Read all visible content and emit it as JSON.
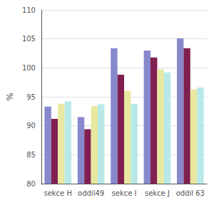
{
  "chart_data": {
    "type": "bar",
    "categories": [
      "sekce H",
      "oddil49",
      "sekce I",
      "sekce J",
      "oddil 63"
    ],
    "series": [
      {
        "color": "#8888cc",
        "values": [
          93.3,
          91.5,
          103.4,
          103.0,
          105.1
        ]
      },
      {
        "color": "#802050",
        "values": [
          91.2,
          89.4,
          98.8,
          101.8,
          103.4
        ]
      },
      {
        "color": "#e8e8a0",
        "values": [
          93.8,
          93.4,
          96.0,
          99.7,
          96.3
        ]
      },
      {
        "color": "#b8e8e8",
        "values": [
          94.2,
          93.7,
          93.8,
          99.2,
          96.6
        ]
      }
    ],
    "ylabel": "%",
    "ylim": [
      80,
      110
    ],
    "yticks": [
      80,
      85,
      90,
      95,
      100,
      105,
      110
    ],
    "grid": true
  }
}
